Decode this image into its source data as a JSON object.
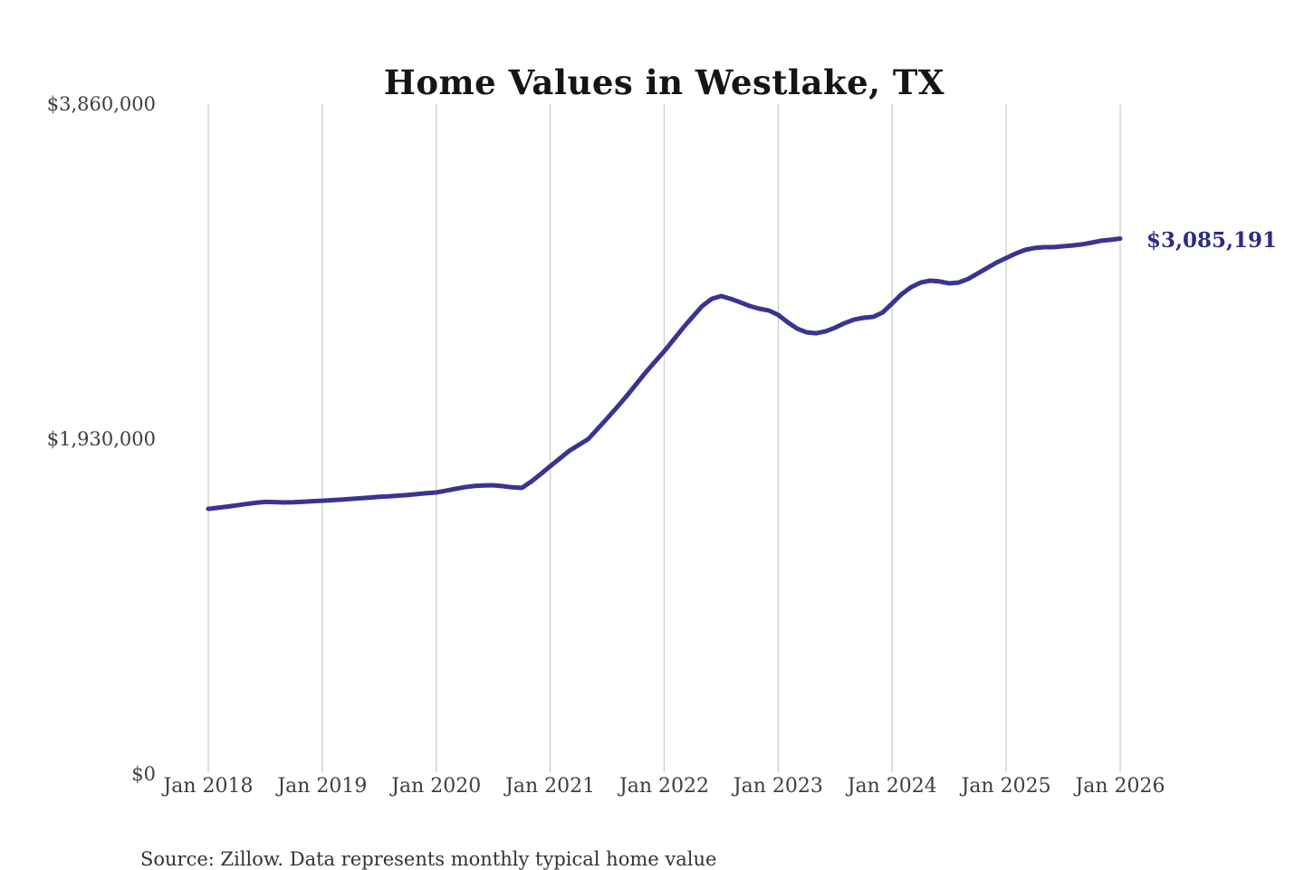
{
  "page_title": "Home value chart",
  "source_note": "Source: Zillow. Data represents monthly typical home value",
  "colors": {
    "background": "#ffffff",
    "gridline": "#cccccc",
    "title_text": "#151515",
    "axis_text": "#3e3e3e",
    "line": "#3a3490",
    "end_label_text": "#2d2a87"
  },
  "chart_data": {
    "type": "line",
    "title": "Home Values in Westlake, TX",
    "xlabel": "",
    "ylabel": "",
    "grid": "vertical-only",
    "legend": "none",
    "ylim": [
      0,
      3860000
    ],
    "y_ticks": [
      {
        "label": "$3,860,000",
        "value": 3860000
      },
      {
        "label": "$1,930,000",
        "value": 1930000
      },
      {
        "label": "$0",
        "value": 0
      }
    ],
    "x_tick_labels": [
      "Jan 2018",
      "Jan 2019",
      "Jan 2020",
      "Jan 2021",
      "Jan 2022",
      "Jan 2023",
      "Jan 2024",
      "Jan 2025",
      "Jan 2026"
    ],
    "months_per_tick": 12,
    "end_label": "$3,085,191",
    "latest_value": 3085191,
    "series": [
      {
        "name": "Monthly typical home value",
        "color": "#3a3490",
        "x_start": "Jan 2018",
        "x_end": "Jan 2026",
        "x_step": "1 month",
        "values": [
          1528000,
          1534000,
          1541000,
          1548000,
          1556000,
          1563000,
          1568000,
          1567000,
          1565000,
          1566000,
          1569000,
          1572000,
          1575000,
          1578000,
          1581000,
          1585000,
          1589000,
          1593000,
          1597000,
          1600000,
          1604000,
          1608000,
          1613000,
          1618000,
          1622000,
          1632000,
          1643000,
          1653000,
          1660000,
          1663000,
          1664000,
          1659000,
          1652000,
          1649000,
          1685000,
          1728000,
          1774000,
          1818000,
          1862000,
          1896000,
          1930000,
          1990000,
          2050000,
          2112000,
          2175000,
          2243000,
          2311000,
          2374000,
          2436000,
          2504000,
          2572000,
          2635000,
          2697000,
          2738000,
          2754000,
          2738000,
          2718000,
          2697000,
          2681000,
          2671000,
          2645000,
          2603000,
          2566000,
          2545000,
          2540000,
          2551000,
          2572000,
          2598000,
          2619000,
          2629000,
          2634000,
          2660000,
          2712000,
          2765000,
          2806000,
          2832000,
          2843000,
          2838000,
          2827000,
          2832000,
          2853000,
          2884000,
          2916000,
          2947000,
          2973000,
          2999000,
          3020000,
          3031000,
          3036000,
          3036000,
          3041000,
          3046000,
          3052000,
          3062000,
          3073000,
          3078000,
          3085191
        ]
      }
    ]
  }
}
